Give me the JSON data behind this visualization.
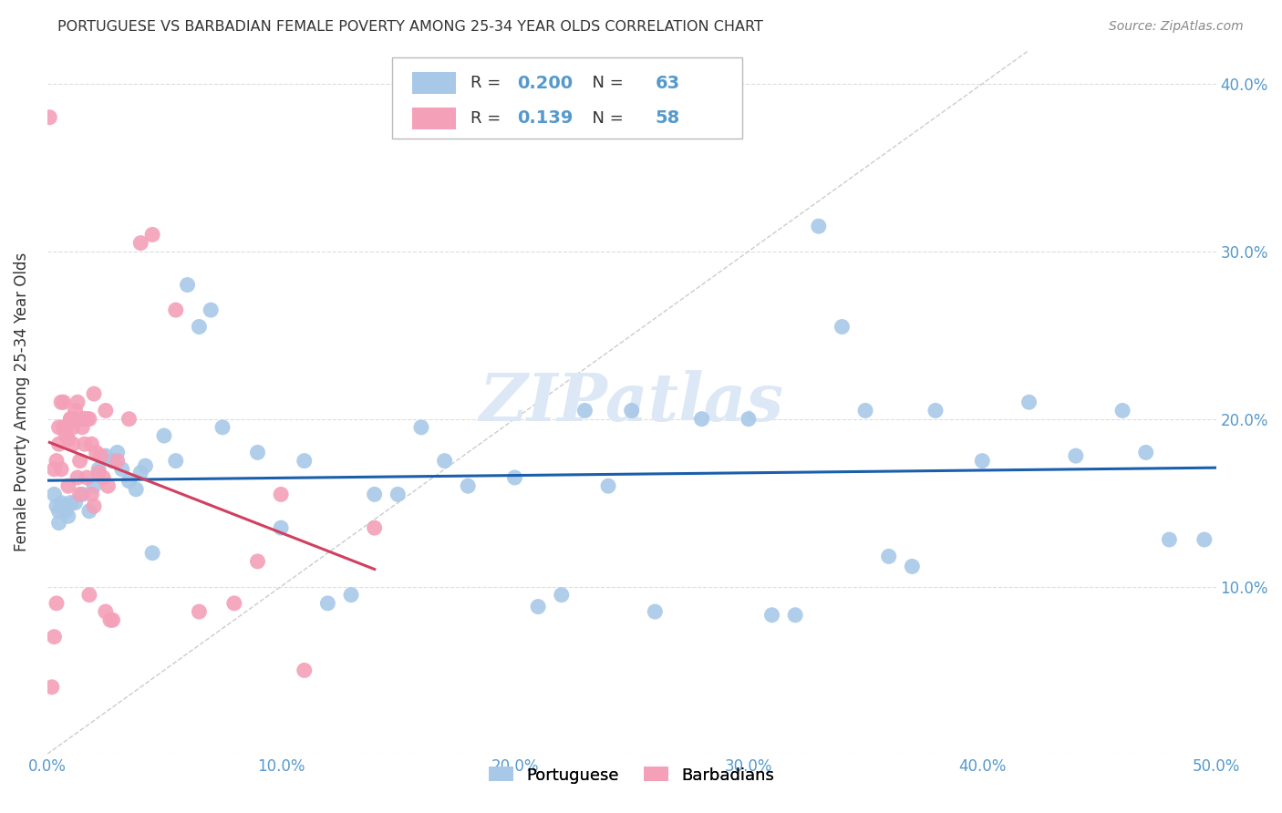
{
  "title": "PORTUGUESE VS BARBADIAN FEMALE POVERTY AMONG 25-34 YEAR OLDS CORRELATION CHART",
  "source": "Source: ZipAtlas.com",
  "ylabel": "Female Poverty Among 25-34 Year Olds",
  "xlim": [
    0.0,
    0.5
  ],
  "ylim": [
    0.0,
    0.42
  ],
  "xticks": [
    0.0,
    0.1,
    0.2,
    0.3,
    0.4,
    0.5
  ],
  "yticks": [
    0.0,
    0.1,
    0.2,
    0.3,
    0.4
  ],
  "xtick_labels": [
    "0.0%",
    "10.0%",
    "20.0%",
    "30.0%",
    "40.0%",
    "50.0%"
  ],
  "ytick_labels_right": [
    "",
    "10.0%",
    "20.0%",
    "30.0%",
    "40.0%"
  ],
  "portuguese_color": "#A8C8E8",
  "barbadian_color": "#F4A0B8",
  "portuguese_R": 0.2,
  "portuguese_N": 63,
  "barbadian_R": 0.139,
  "barbadian_N": 58,
  "trend_blue": "#1A5FAB",
  "trend_pink": "#D04060",
  "diagonal_color": "#CCCCCC",
  "background_color": "#FFFFFF",
  "tick_color": "#5599CC",
  "portuguese_x": [
    0.003,
    0.004,
    0.005,
    0.005,
    0.006,
    0.007,
    0.008,
    0.009,
    0.01,
    0.012,
    0.015,
    0.018,
    0.02,
    0.022,
    0.025,
    0.028,
    0.03,
    0.032,
    0.035,
    0.038,
    0.04,
    0.042,
    0.045,
    0.05,
    0.055,
    0.06,
    0.065,
    0.07,
    0.075,
    0.09,
    0.1,
    0.11,
    0.12,
    0.13,
    0.14,
    0.15,
    0.16,
    0.17,
    0.18,
    0.2,
    0.21,
    0.22,
    0.23,
    0.24,
    0.25,
    0.26,
    0.28,
    0.3,
    0.31,
    0.32,
    0.33,
    0.34,
    0.35,
    0.36,
    0.37,
    0.38,
    0.4,
    0.42,
    0.44,
    0.46,
    0.47,
    0.48,
    0.495
  ],
  "portuguese_y": [
    0.155,
    0.148,
    0.145,
    0.138,
    0.15,
    0.148,
    0.145,
    0.142,
    0.15,
    0.15,
    0.155,
    0.145,
    0.16,
    0.17,
    0.178,
    0.175,
    0.18,
    0.17,
    0.163,
    0.158,
    0.168,
    0.172,
    0.12,
    0.19,
    0.175,
    0.28,
    0.255,
    0.265,
    0.195,
    0.18,
    0.135,
    0.175,
    0.09,
    0.095,
    0.155,
    0.155,
    0.195,
    0.175,
    0.16,
    0.165,
    0.088,
    0.095,
    0.205,
    0.16,
    0.205,
    0.085,
    0.2,
    0.2,
    0.083,
    0.083,
    0.315,
    0.255,
    0.205,
    0.118,
    0.112,
    0.205,
    0.175,
    0.21,
    0.178,
    0.205,
    0.18,
    0.128,
    0.128
  ],
  "barbadian_x": [
    0.001,
    0.002,
    0.003,
    0.003,
    0.004,
    0.004,
    0.005,
    0.005,
    0.006,
    0.006,
    0.007,
    0.007,
    0.008,
    0.008,
    0.009,
    0.009,
    0.01,
    0.01,
    0.011,
    0.011,
    0.012,
    0.012,
    0.013,
    0.013,
    0.014,
    0.014,
    0.015,
    0.015,
    0.016,
    0.016,
    0.017,
    0.017,
    0.018,
    0.018,
    0.019,
    0.019,
    0.02,
    0.02,
    0.021,
    0.022,
    0.023,
    0.024,
    0.025,
    0.025,
    0.026,
    0.027,
    0.028,
    0.03,
    0.035,
    0.04,
    0.045,
    0.055,
    0.065,
    0.08,
    0.09,
    0.1,
    0.11,
    0.14
  ],
  "barbadian_y": [
    0.38,
    0.04,
    0.07,
    0.17,
    0.09,
    0.175,
    0.185,
    0.195,
    0.17,
    0.21,
    0.21,
    0.195,
    0.19,
    0.195,
    0.188,
    0.16,
    0.2,
    0.2,
    0.195,
    0.185,
    0.205,
    0.2,
    0.165,
    0.21,
    0.175,
    0.155,
    0.2,
    0.195,
    0.2,
    0.185,
    0.165,
    0.2,
    0.2,
    0.095,
    0.185,
    0.155,
    0.215,
    0.148,
    0.18,
    0.168,
    0.178,
    0.165,
    0.085,
    0.205,
    0.16,
    0.08,
    0.08,
    0.175,
    0.2,
    0.305,
    0.31,
    0.265,
    0.085,
    0.09,
    0.115,
    0.155,
    0.05,
    0.135
  ]
}
